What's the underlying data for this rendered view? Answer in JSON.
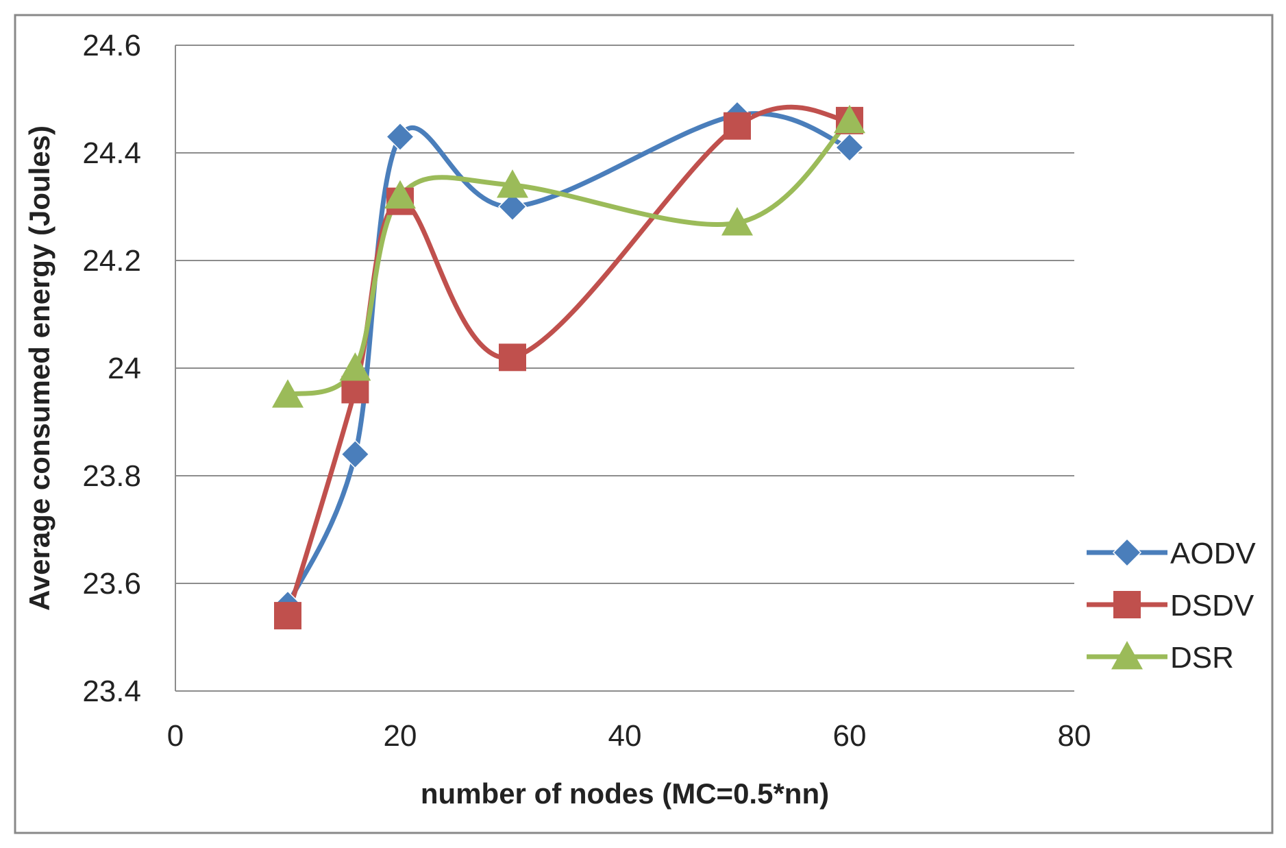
{
  "chart_data": {
    "type": "line",
    "title": "",
    "xlabel": "number of nodes (MC=0.5*nn)",
    "ylabel": "Average consumed energy (Joules)",
    "xlim": [
      0,
      80
    ],
    "ylim": [
      23.4,
      24.6
    ],
    "xticks": [
      0,
      20,
      40,
      60,
      80
    ],
    "yticks": [
      23.4,
      23.6,
      23.8,
      24,
      24.2,
      24.4,
      24.6
    ],
    "xtick_labels": [
      "0",
      "20",
      "40",
      "60",
      "80"
    ],
    "ytick_labels": [
      "23.4",
      "23.6",
      "23.8",
      "24",
      "24.2",
      "24.4",
      "24.6"
    ],
    "grid": "horizontal",
    "smooth": true,
    "legend_position": "right",
    "series": [
      {
        "name": "AODV",
        "color": "#4a7ebb",
        "marker": "diamond",
        "x": [
          10,
          16,
          20,
          30,
          50,
          60
        ],
        "y": [
          23.56,
          23.84,
          24.43,
          24.3,
          24.47,
          24.41
        ]
      },
      {
        "name": "DSDV",
        "color": "#c0504d",
        "marker": "square",
        "x": [
          10,
          16,
          20,
          30,
          50,
          60
        ],
        "y": [
          23.54,
          23.96,
          24.31,
          24.02,
          24.45,
          24.46
        ]
      },
      {
        "name": "DSR",
        "color": "#9bbb59",
        "marker": "triangle",
        "x": [
          10,
          16,
          20,
          30,
          50,
          60
        ],
        "y": [
          23.95,
          24.0,
          24.32,
          24.34,
          24.27,
          24.46
        ]
      }
    ]
  }
}
